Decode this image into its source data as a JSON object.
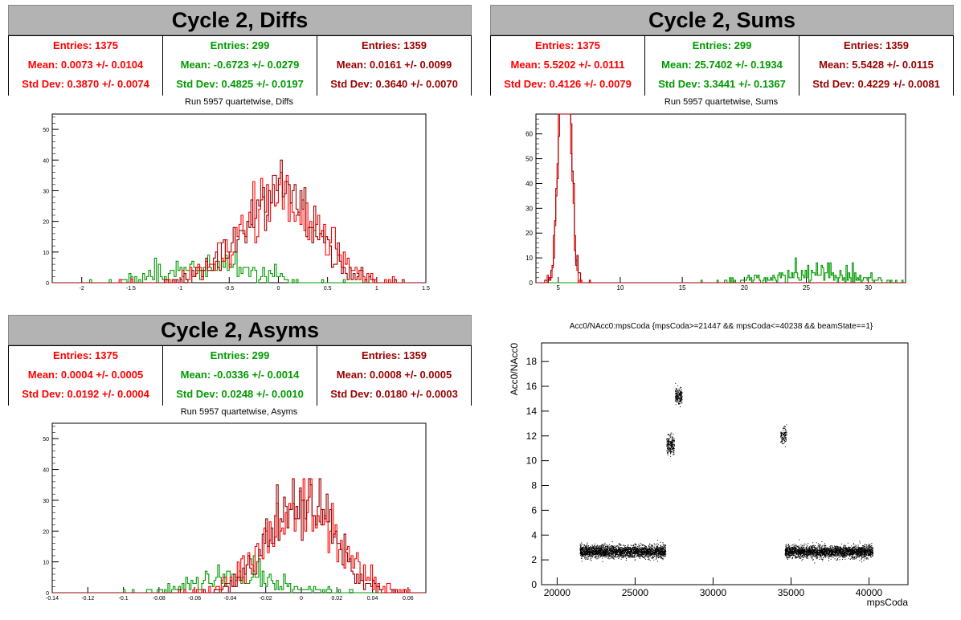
{
  "panels": {
    "diffs": {
      "title": "Cycle 2, Diffs",
      "subtitle": "Run 5957 quartetwise, Diffs",
      "stats": [
        {
          "entries": "Entries: 1375",
          "mean": "Mean: 0.0073 +/- 0.0104",
          "std": "Std Dev: 0.3870 +/- 0.0074",
          "color": "#ff0000"
        },
        {
          "entries": "Entries: 299",
          "mean": "Mean: -0.6723 +/- 0.0279",
          "std": "Std Dev: 0.4825 +/- 0.0197",
          "color": "#009a00"
        },
        {
          "entries": "Entries: 1359",
          "mean": "Mean: 0.0161 +/- 0.0099",
          "std": "Std Dev: 0.3640 +/- 0.0070",
          "color": "#9a0000"
        }
      ]
    },
    "sums": {
      "title": "Cycle 2, Sums",
      "subtitle": "Run 5957 quartetwise, Sums",
      "stats": [
        {
          "entries": "Entries: 1375",
          "mean": "Mean: 5.5202 +/- 0.0111",
          "std": "Std Dev: 0.4126 +/- 0.0079",
          "color": "#ff0000"
        },
        {
          "entries": "Entries: 299",
          "mean": "Mean: 25.7402 +/- 0.1934",
          "std": "Std Dev: 3.3441 +/- 0.1367",
          "color": "#009a00"
        },
        {
          "entries": "Entries: 1359",
          "mean": "Mean: 5.5428 +/- 0.0115",
          "std": "Std Dev: 0.4229 +/- 0.0081",
          "color": "#9a0000"
        }
      ]
    },
    "asyms": {
      "title": "Cycle 2, Asyms",
      "subtitle": "Run 5957 quartetwise, Asyms",
      "stats": [
        {
          "entries": "Entries: 1375",
          "mean": "Mean: 0.0004 +/- 0.0005",
          "std": "Std Dev: 0.0192 +/- 0.0004",
          "color": "#ff0000"
        },
        {
          "entries": "Entries: 299",
          "mean": "Mean: -0.0336 +/- 0.0014",
          "std": "Std Dev: 0.0248 +/- 0.0010",
          "color": "#009a00"
        },
        {
          "entries": "Entries: 1359",
          "mean": "Mean: 0.0008 +/- 0.0005",
          "std": "Std Dev: 0.0180 +/- 0.0003",
          "color": "#9a0000"
        }
      ]
    },
    "scatter": {
      "title": "Acc0/NAcc0:mpsCoda {mpsCoda>=21447 && mpsCoda<=40238 && beamState==1}"
    }
  },
  "chart_data": [
    {
      "type": "bar",
      "title": "Run 5957 quartetwise, Diffs",
      "xlim": [
        -2.3,
        1.5
      ],
      "ylim": [
        0,
        55
      ],
      "xticks": [
        -2,
        -1.5,
        -1,
        -0.5,
        0,
        0.5,
        1,
        1.5
      ],
      "xtick_labels": [
        "-2",
        "-1.5",
        "-1",
        "-0.5",
        "0",
        "0.5",
        "1",
        "1.5"
      ],
      "yticks": [
        0,
        10,
        20,
        30,
        40,
        50
      ],
      "series": [
        {
          "entries": 1375,
          "mean": 0.0073,
          "std": 0.387,
          "color": "#ff0000"
        },
        {
          "entries": 299,
          "mean": -0.6723,
          "std": 0.4825,
          "color": "#009a00"
        },
        {
          "entries": 1359,
          "mean": 0.0161,
          "std": 0.364,
          "color": "#9a0000"
        }
      ],
      "bin_width": 0.02
    },
    {
      "type": "bar",
      "title": "Run 5957 quartetwise, Sums",
      "xlim": [
        3.2,
        33
      ],
      "ylim": [
        0,
        68
      ],
      "xticks": [
        5,
        10,
        15,
        20,
        25,
        30
      ],
      "xtick_labels": [
        "5",
        "10",
        "15",
        "20",
        "25",
        "30"
      ],
      "yticks": [
        0,
        10,
        20,
        30,
        40,
        50,
        60
      ],
      "series": [
        {
          "entries": 1375,
          "mean": 5.5202,
          "std": 0.4126,
          "color": "#ff0000"
        },
        {
          "entries": 299,
          "mean": 25.7402,
          "std": 3.3441,
          "color": "#009a00"
        },
        {
          "entries": 1359,
          "mean": 5.5428,
          "std": 0.4229,
          "color": "#9a0000"
        }
      ],
      "bin_width": 0.1
    },
    {
      "type": "bar",
      "title": "Run 5957 quartetwise, Asyms",
      "xlim": [
        -0.14,
        0.07
      ],
      "ylim": [
        0,
        55
      ],
      "xticks": [
        -0.14,
        -0.12,
        -0.1,
        -0.08,
        -0.06,
        -0.04,
        -0.02,
        0,
        0.02,
        0.04,
        0.06
      ],
      "xtick_labels": [
        "-0.14",
        "-0.12",
        "-0.1",
        "-0.08",
        "-0.06",
        "-0.04",
        "-0.02",
        "0",
        "0.02",
        "0.04",
        "0.06"
      ],
      "yticks": [
        0,
        10,
        20,
        30,
        40,
        50
      ],
      "series": [
        {
          "entries": 1375,
          "mean": 0.0004,
          "std": 0.0192,
          "color": "#ff0000"
        },
        {
          "entries": 299,
          "mean": -0.0336,
          "std": 0.0248,
          "color": "#009a00"
        },
        {
          "entries": 1359,
          "mean": 0.0008,
          "std": 0.018,
          "color": "#9a0000"
        }
      ],
      "bin_width": 0.001
    },
    {
      "type": "scatter",
      "title": "Acc0/NAcc0:mpsCoda {mpsCoda>=21447 && mpsCoda<=40238 && beamState==1}",
      "xlabel": "mpsCoda",
      "ylabel": "Acc0/NAcc0",
      "xlim": [
        19000,
        42500
      ],
      "ylim": [
        0,
        19.5
      ],
      "xticks": [
        20000,
        25000,
        30000,
        35000,
        40000
      ],
      "xtick_labels": [
        "20000",
        "25000",
        "30000",
        "35000",
        "40000"
      ],
      "yticks": [
        0,
        2,
        4,
        6,
        8,
        10,
        12,
        14,
        16,
        18
      ],
      "clusters": [
        {
          "x": [
            21447,
            26950
          ],
          "y_center": 2.7,
          "y_spread": 0.35,
          "n": 2600
        },
        {
          "x": [
            34600,
            40238
          ],
          "y_center": 2.7,
          "y_spread": 0.35,
          "n": 2600
        },
        {
          "x": [
            27000,
            27500
          ],
          "y_center": 11.3,
          "y_spread": 0.6,
          "n": 220
        },
        {
          "x": [
            27550,
            28000
          ],
          "y_center": 15.2,
          "y_spread": 0.5,
          "n": 200
        },
        {
          "x": [
            34300,
            34700
          ],
          "y_center": 12.0,
          "y_spread": 0.5,
          "n": 110
        }
      ]
    }
  ]
}
